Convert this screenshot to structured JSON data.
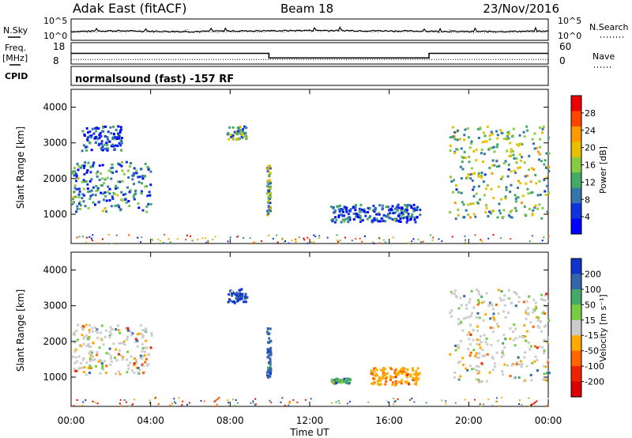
{
  "header": {
    "station": "Adak East (fitACF)",
    "beam": "Beam 18",
    "date": "23/Nov/2016"
  },
  "side_labels": {
    "nsky": "N.Sky",
    "freq": "Freq.",
    "freq_unit": "[MHz]",
    "cpid": "CPID",
    "nsearch": "N.Search",
    "nave": "Nave"
  },
  "log_ticks": [
    "10^5",
    "10^0"
  ],
  "freq_ticks": [
    "18",
    "8"
  ],
  "nave_ticks": [
    "60",
    "0"
  ],
  "cpid_text": "normalsound (fast) -157 RF",
  "chart_data": [
    {
      "type": "line",
      "panel": "noise",
      "series": [
        {
          "name": "N.Sky",
          "x_hours": [
            0,
            2,
            4,
            6,
            8,
            10,
            12,
            14,
            16,
            18,
            20,
            22,
            24
          ],
          "values": [
            100,
            160,
            120,
            100,
            140,
            160,
            200,
            180,
            150,
            120,
            100,
            110,
            130
          ]
        },
        {
          "name": "N.Search",
          "x_hours": [
            0,
            2,
            4,
            6,
            8,
            10,
            12,
            14,
            16,
            18,
            20,
            22,
            24
          ],
          "values": [
            60,
            90,
            70,
            60,
            80,
            90,
            120,
            110,
            90,
            70,
            60,
            65,
            80
          ]
        }
      ],
      "ylim": [
        1,
        100000
      ],
      "log_scale": true
    },
    {
      "type": "line",
      "panel": "frequency",
      "series": [
        {
          "name": "Freq.",
          "x_hours": [
            0,
            9.95,
            9.95,
            18,
            18,
            24
          ],
          "values": [
            13,
            13,
            10.5,
            10.5,
            13,
            13
          ]
        },
        {
          "name": "Nave",
          "x_hours": [
            0,
            24
          ],
          "values": [
            10,
            10
          ]
        }
      ],
      "ylim_freq": [
        8,
        18
      ],
      "ylim_nave": [
        0,
        60
      ]
    },
    {
      "type": "heatmap",
      "panel": "power",
      "ylabel": "Slant Range [km]",
      "yticks": [
        "4000",
        "3000",
        "2000",
        "1000"
      ],
      "ylim": [
        180,
        4500
      ],
      "colorbar_label": "Power [dB]",
      "colorbar_ticks": [
        "28",
        "24",
        "20",
        "16",
        "12",
        "8",
        "4"
      ],
      "colorbar_colors": [
        "#ee0000",
        "#ff4400",
        "#ff9900",
        "#e8c000",
        "#88cc44",
        "#44aa66",
        "#3377aa",
        "#1133dd",
        "#0000ff"
      ],
      "echo_regions": [
        {
          "t": [
            0.0,
            4.0
          ],
          "range": [
            1100,
            2500
          ],
          "mean": 10
        },
        {
          "t": [
            0.5,
            2.5
          ],
          "range": [
            2800,
            3500
          ],
          "mean": 6
        },
        {
          "t": [
            7.8,
            8.8
          ],
          "range": [
            3100,
            3500
          ],
          "mean": 12
        },
        {
          "t": [
            9.8,
            10.0
          ],
          "range": [
            1000,
            2400
          ],
          "mean": 14
        },
        {
          "t": [
            13.0,
            17.5
          ],
          "range": [
            800,
            1300
          ],
          "mean": 7
        },
        {
          "t": [
            19.0,
            24.0
          ],
          "range": [
            900,
            3500
          ],
          "mean": 14
        }
      ]
    },
    {
      "type": "heatmap",
      "panel": "velocity",
      "ylabel": "Slant Range [km]",
      "yticks": [
        "4000",
        "3000",
        "2000",
        "1000"
      ],
      "ylim": [
        180,
        4500
      ],
      "colorbar_label": "Velocity [m s⁻¹]",
      "colorbar_ticks": [
        "200",
        "100",
        "50",
        "15",
        "-15",
        "-50",
        "-100",
        "-200"
      ],
      "colorbar_colors": [
        "#1133cc",
        "#3366aa",
        "#44aa66",
        "#77cc44",
        "#cccccc",
        "#ffaa00",
        "#ff6600",
        "#ee2200",
        "#dd0000"
      ],
      "echo_regions": [
        {
          "t": [
            0.0,
            4.0
          ],
          "range": [
            1100,
            2500
          ],
          "mean": 0
        },
        {
          "t": [
            7.8,
            8.8
          ],
          "range": [
            3100,
            3500
          ],
          "mean": 150
        },
        {
          "t": [
            9.8,
            10.0
          ],
          "range": [
            1000,
            2400
          ],
          "mean": 120
        },
        {
          "t": [
            13.0,
            14.0
          ],
          "range": [
            850,
            1000
          ],
          "mean": 40
        },
        {
          "t": [
            15.0,
            17.5
          ],
          "range": [
            800,
            1300
          ],
          "mean": -40
        },
        {
          "t": [
            19.0,
            24.0
          ],
          "range": [
            900,
            3500
          ],
          "mean": 0
        }
      ]
    }
  ],
  "x_axis": {
    "label": "Time UT",
    "ticks": [
      "00:00",
      "04:00",
      "08:00",
      "12:00",
      "16:00",
      "20:00",
      "00:00"
    ]
  }
}
